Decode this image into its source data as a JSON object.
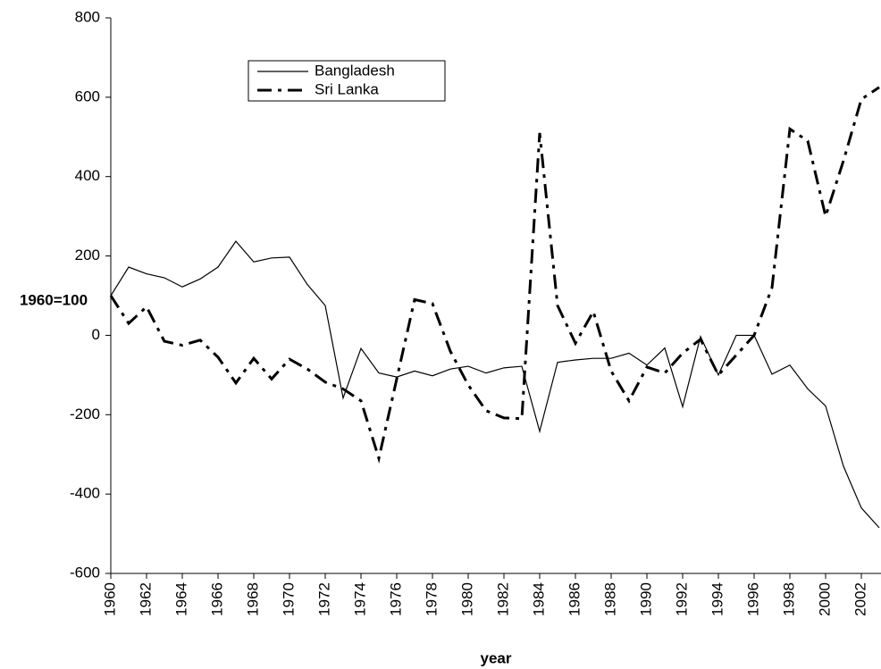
{
  "chart_data": {
    "type": "line",
    "y_label": "1960=100",
    "x_label": "year",
    "x": [
      1960,
      1961,
      1962,
      1963,
      1964,
      1965,
      1966,
      1967,
      1968,
      1969,
      1970,
      1971,
      1972,
      1973,
      1974,
      1975,
      1976,
      1977,
      1978,
      1979,
      1980,
      1981,
      1982,
      1983,
      1984,
      1985,
      1986,
      1987,
      1988,
      1989,
      1990,
      1991,
      1992,
      1993,
      1994,
      1995,
      1996,
      1997,
      1998,
      1999,
      2000,
      2001,
      2002,
      2003
    ],
    "series": [
      {
        "name": "Bangladesh",
        "color": "#000000",
        "line_style": "solid",
        "values": [
          100,
          172,
          155,
          145,
          122,
          142,
          172,
          237,
          185,
          195,
          197,
          128,
          75,
          -158,
          -33,
          -95,
          -105,
          -90,
          -102,
          -85,
          -78,
          -95,
          -82,
          -78,
          -242,
          -68,
          -62,
          -58,
          -58,
          -45,
          -75,
          -32,
          -180,
          -3,
          -100,
          0,
          0,
          -98,
          -75,
          -135,
          -178,
          -330,
          -435,
          -485
        ]
      },
      {
        "name": "Sri Lanka",
        "color": "#000000",
        "line_style": "dashdot",
        "values": [
          100,
          30,
          72,
          -15,
          -25,
          -12,
          -55,
          -120,
          -58,
          -110,
          -60,
          -85,
          -118,
          -135,
          -165,
          -310,
          -110,
          90,
          80,
          -40,
          -125,
          -190,
          -208,
          -210,
          510,
          75,
          -20,
          60,
          -90,
          -165,
          -80,
          -95,
          -45,
          -10,
          -100,
          -50,
          0,
          120,
          520,
          490,
          300,
          440,
          595,
          625
        ]
      }
    ],
    "xlim": [
      1960,
      2003
    ],
    "xticks": [
      1960,
      1962,
      1964,
      1966,
      1968,
      1970,
      1972,
      1974,
      1976,
      1978,
      1980,
      1982,
      1984,
      1986,
      1988,
      1990,
      1992,
      1994,
      1996,
      1998,
      2000,
      2002
    ],
    "ylim": [
      -600,
      800
    ],
    "yticks": [
      -600,
      -400,
      -200,
      0,
      200,
      400,
      600,
      800
    ],
    "grid": false
  }
}
